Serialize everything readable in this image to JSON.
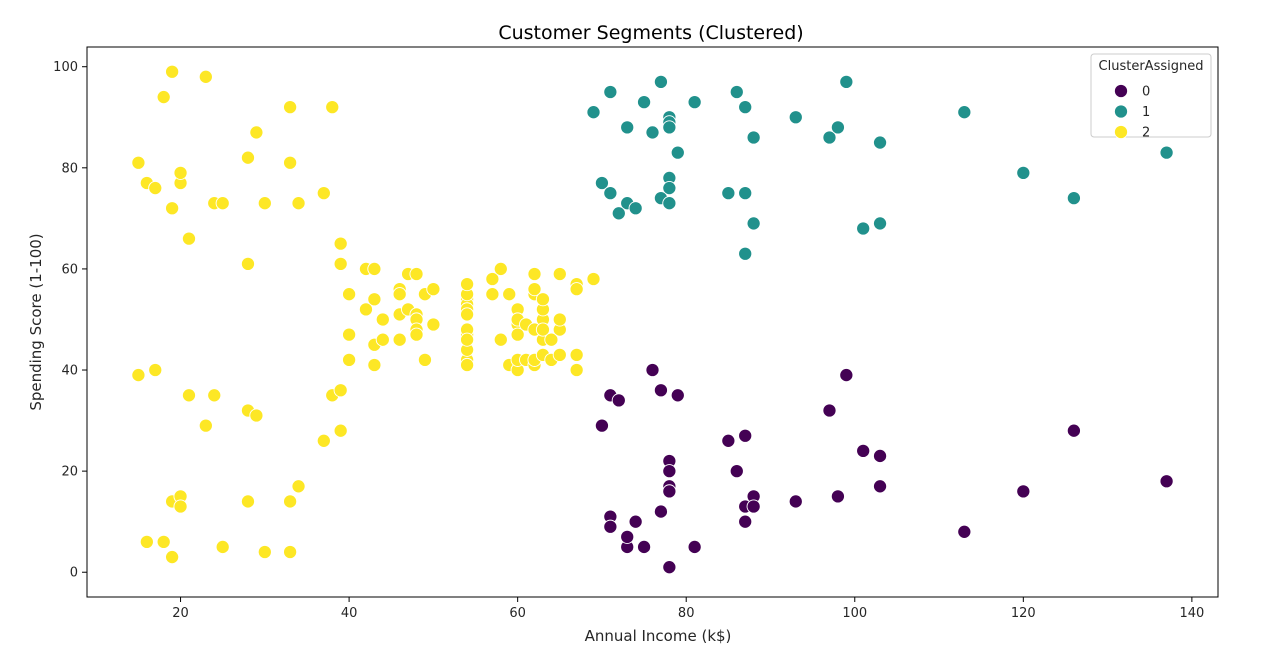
{
  "chart_data": {
    "type": "scatter",
    "title": "Customer Segments (Clustered)",
    "xlabel": "Annual Income (k$)",
    "ylabel": "Spending Score (1-100)",
    "xlim": [
      8.9,
      143.1
    ],
    "ylim": [
      -4.9,
      103.9
    ],
    "xticks": [
      20,
      40,
      60,
      80,
      100,
      120,
      140
    ],
    "yticks": [
      0,
      20,
      40,
      60,
      80,
      100
    ],
    "grid": false,
    "legend": {
      "title": "ClusterAssigned",
      "placement": "top-right",
      "entries": [
        "0",
        "1",
        "2"
      ]
    },
    "series": [
      {
        "name": "0",
        "color": "#440154",
        "points": [
          [
            71,
            35
          ],
          [
            72,
            34
          ],
          [
            70,
            29
          ],
          [
            71,
            11
          ],
          [
            71,
            9
          ],
          [
            73,
            5
          ],
          [
            73,
            7
          ],
          [
            74,
            10
          ],
          [
            75,
            5
          ],
          [
            76,
            40
          ],
          [
            77,
            36
          ],
          [
            77,
            12
          ],
          [
            78,
            22
          ],
          [
            78,
            20
          ],
          [
            78,
            17
          ],
          [
            78,
            16
          ],
          [
            78,
            1
          ],
          [
            79,
            35
          ],
          [
            81,
            5
          ],
          [
            85,
            26
          ],
          [
            86,
            20
          ],
          [
            87,
            27
          ],
          [
            87,
            13
          ],
          [
            87,
            10
          ],
          [
            88,
            15
          ],
          [
            88,
            13
          ],
          [
            93,
            14
          ],
          [
            97,
            32
          ],
          [
            98,
            15
          ],
          [
            99,
            39
          ],
          [
            101,
            24
          ],
          [
            103,
            23
          ],
          [
            103,
            17
          ],
          [
            113,
            8
          ],
          [
            120,
            16
          ],
          [
            126,
            28
          ],
          [
            137,
            18
          ]
        ]
      },
      {
        "name": "1",
        "color": "#21918c",
        "points": [
          [
            69,
            91
          ],
          [
            70,
            77
          ],
          [
            71,
            95
          ],
          [
            71,
            75
          ],
          [
            72,
            71
          ],
          [
            73,
            88
          ],
          [
            73,
            73
          ],
          [
            74,
            72
          ],
          [
            75,
            93
          ],
          [
            76,
            87
          ],
          [
            77,
            97
          ],
          [
            77,
            74
          ],
          [
            78,
            90
          ],
          [
            78,
            89
          ],
          [
            78,
            88
          ],
          [
            78,
            78
          ],
          [
            78,
            76
          ],
          [
            78,
            73
          ],
          [
            79,
            83
          ],
          [
            81,
            93
          ],
          [
            85,
            75
          ],
          [
            86,
            95
          ],
          [
            87,
            92
          ],
          [
            87,
            75
          ],
          [
            87,
            63
          ],
          [
            88,
            86
          ],
          [
            88,
            69
          ],
          [
            93,
            90
          ],
          [
            97,
            86
          ],
          [
            98,
            88
          ],
          [
            99,
            97
          ],
          [
            101,
            68
          ],
          [
            103,
            85
          ],
          [
            103,
            69
          ],
          [
            113,
            91
          ],
          [
            120,
            79
          ],
          [
            126,
            74
          ],
          [
            137,
            83
          ]
        ]
      },
      {
        "name": "2",
        "color": "#fde725",
        "points": [
          [
            15,
            39
          ],
          [
            15,
            81
          ],
          [
            16,
            6
          ],
          [
            16,
            77
          ],
          [
            17,
            40
          ],
          [
            17,
            76
          ],
          [
            18,
            6
          ],
          [
            18,
            94
          ],
          [
            19,
            3
          ],
          [
            19,
            72
          ],
          [
            19,
            14
          ],
          [
            19,
            99
          ],
          [
            20,
            15
          ],
          [
            20,
            77
          ],
          [
            20,
            13
          ],
          [
            20,
            79
          ],
          [
            21,
            35
          ],
          [
            21,
            66
          ],
          [
            23,
            29
          ],
          [
            23,
            98
          ],
          [
            24,
            35
          ],
          [
            24,
            73
          ],
          [
            25,
            5
          ],
          [
            25,
            73
          ],
          [
            28,
            14
          ],
          [
            28,
            82
          ],
          [
            28,
            32
          ],
          [
            28,
            61
          ],
          [
            29,
            31
          ],
          [
            29,
            87
          ],
          [
            30,
            4
          ],
          [
            30,
            73
          ],
          [
            33,
            4
          ],
          [
            33,
            92
          ],
          [
            33,
            14
          ],
          [
            33,
            81
          ],
          [
            34,
            17
          ],
          [
            34,
            73
          ],
          [
            37,
            26
          ],
          [
            37,
            75
          ],
          [
            38,
            35
          ],
          [
            38,
            92
          ],
          [
            39,
            36
          ],
          [
            39,
            61
          ],
          [
            39,
            28
          ],
          [
            39,
            65
          ],
          [
            40,
            55
          ],
          [
            40,
            47
          ],
          [
            40,
            42
          ],
          [
            42,
            52
          ],
          [
            42,
            60
          ],
          [
            43,
            54
          ],
          [
            43,
            60
          ],
          [
            43,
            45
          ],
          [
            43,
            41
          ],
          [
            44,
            50
          ],
          [
            44,
            46
          ],
          [
            46,
            51
          ],
          [
            46,
            46
          ],
          [
            46,
            56
          ],
          [
            46,
            55
          ],
          [
            47,
            52
          ],
          [
            47,
            59
          ],
          [
            48,
            51
          ],
          [
            48,
            59
          ],
          [
            48,
            50
          ],
          [
            48,
            48
          ],
          [
            48,
            47
          ],
          [
            49,
            55
          ],
          [
            49,
            42
          ],
          [
            50,
            49
          ],
          [
            50,
            56
          ],
          [
            54,
            47
          ],
          [
            54,
            54
          ],
          [
            54,
            53
          ],
          [
            54,
            48
          ],
          [
            54,
            52
          ],
          [
            54,
            42
          ],
          [
            54,
            51
          ],
          [
            54,
            55
          ],
          [
            54,
            41
          ],
          [
            54,
            44
          ],
          [
            54,
            57
          ],
          [
            54,
            46
          ],
          [
            57,
            58
          ],
          [
            57,
            55
          ],
          [
            58,
            60
          ],
          [
            58,
            46
          ],
          [
            59,
            55
          ],
          [
            59,
            41
          ],
          [
            60,
            49
          ],
          [
            60,
            40
          ],
          [
            60,
            42
          ],
          [
            60,
            52
          ],
          [
            60,
            47
          ],
          [
            60,
            50
          ],
          [
            61,
            42
          ],
          [
            61,
            49
          ],
          [
            62,
            41
          ],
          [
            62,
            48
          ],
          [
            62,
            59
          ],
          [
            62,
            55
          ],
          [
            62,
            56
          ],
          [
            62,
            42
          ],
          [
            63,
            50
          ],
          [
            63,
            46
          ],
          [
            63,
            43
          ],
          [
            63,
            48
          ],
          [
            63,
            52
          ],
          [
            63,
            54
          ],
          [
            64,
            42
          ],
          [
            64,
            46
          ],
          [
            65,
            48
          ],
          [
            65,
            50
          ],
          [
            65,
            43
          ],
          [
            65,
            59
          ],
          [
            67,
            43
          ],
          [
            67,
            57
          ],
          [
            67,
            56
          ],
          [
            67,
            40
          ],
          [
            69,
            58
          ]
        ]
      }
    ]
  }
}
